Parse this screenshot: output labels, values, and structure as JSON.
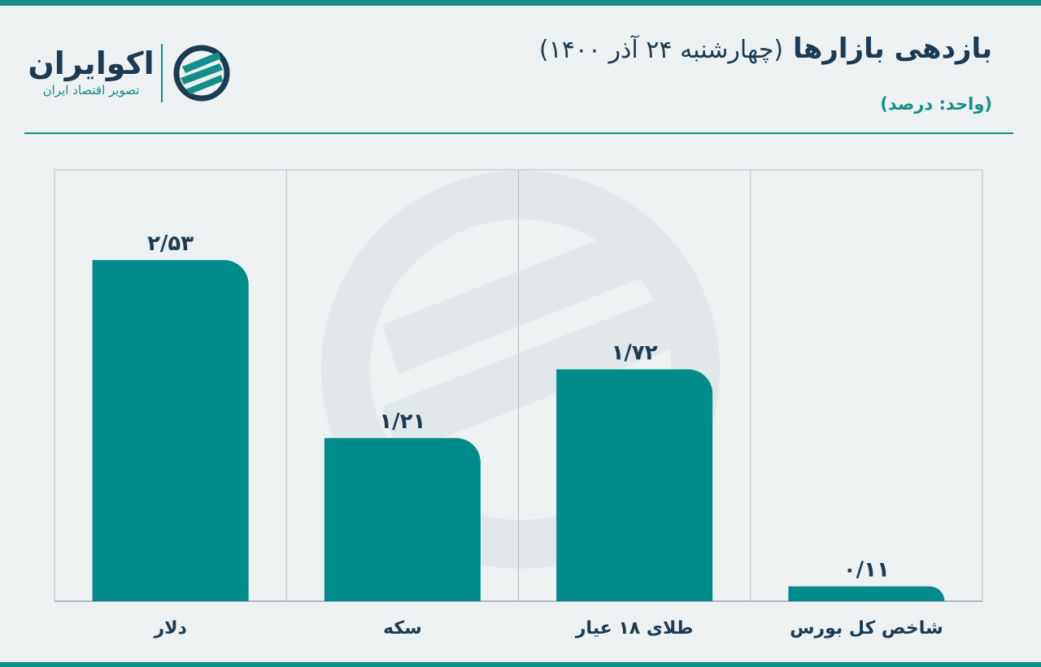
{
  "header": {
    "title_main": "بازدهی بازارها",
    "title_sub": "(چهارشنبه ۲۴ آذر ۱۴۰۰)",
    "unit": "(واحد: درصد)"
  },
  "logo": {
    "name": "اکوایران",
    "tagline": "تصویر اقتصاد ایران"
  },
  "colors": {
    "bar": "#008b8b",
    "accent": "#138e8b",
    "text": "#1a3b52"
  },
  "chart_data": {
    "type": "bar",
    "title": "بازدهی بازارها (چهارشنبه ۲۴ آذر ۱۴۰۰)",
    "ylabel": "(واحد: درصد)",
    "categories": [
      "دلار",
      "سکه",
      "طلای ۱۸ عیار",
      "شاخص کل بورس"
    ],
    "values": [
      2.53,
      1.21,
      1.72,
      0.11
    ],
    "value_labels": [
      "۲/۵۳",
      "۱/۲۱",
      "۱/۷۲",
      "۰/۱۱"
    ],
    "ylim": [
      0,
      3.2
    ],
    "grid": "vertical-separators",
    "legend": "none"
  }
}
